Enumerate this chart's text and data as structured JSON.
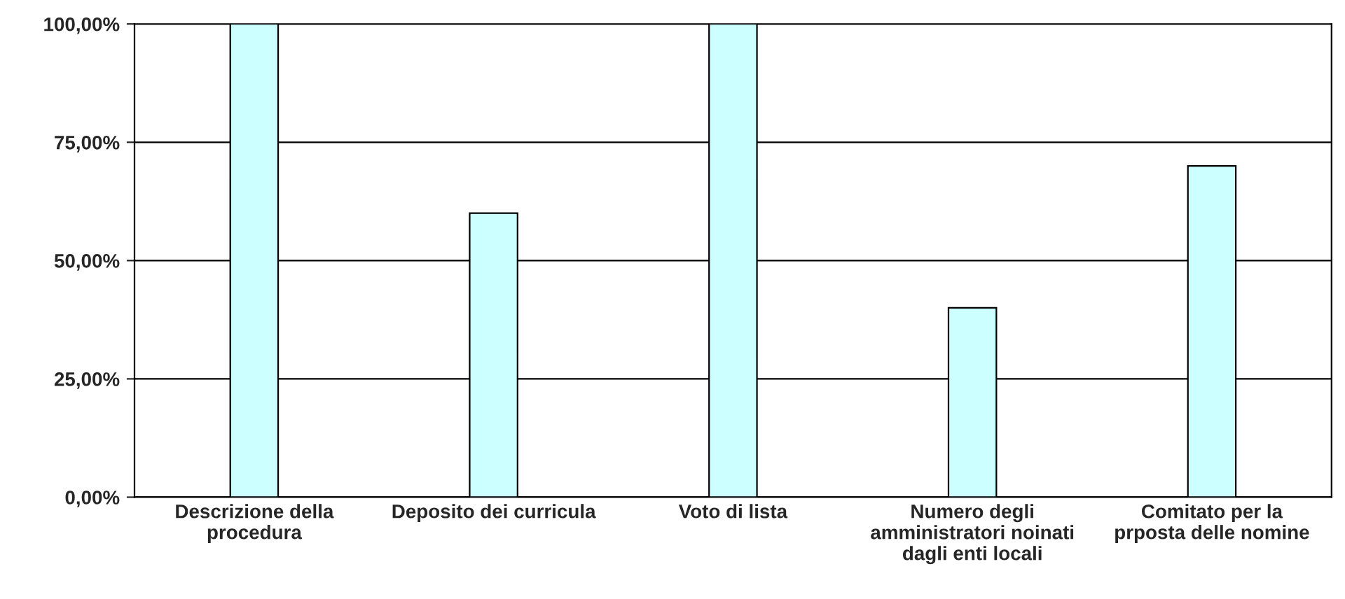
{
  "chart_data": {
    "type": "bar",
    "categories": [
      "Descrizione della\nprocedura",
      "Deposito dei curricula",
      "Voto di lista",
      "Numero degli\namministratori noinati\ndagli enti locali",
      "Comitato per la\nprposta delle nomine"
    ],
    "values": [
      100,
      60,
      100,
      40,
      70
    ],
    "color": "#ccffff",
    "ylim": [
      0,
      100
    ],
    "yticks": [
      {
        "value": 0,
        "label": "0,00%"
      },
      {
        "value": 25,
        "label": "25,00%"
      },
      {
        "value": 50,
        "label": "50,00%"
      },
      {
        "value": 75,
        "label": "75,00%"
      },
      {
        "value": 100,
        "label": "100,00%"
      }
    ],
    "grid": "y"
  }
}
